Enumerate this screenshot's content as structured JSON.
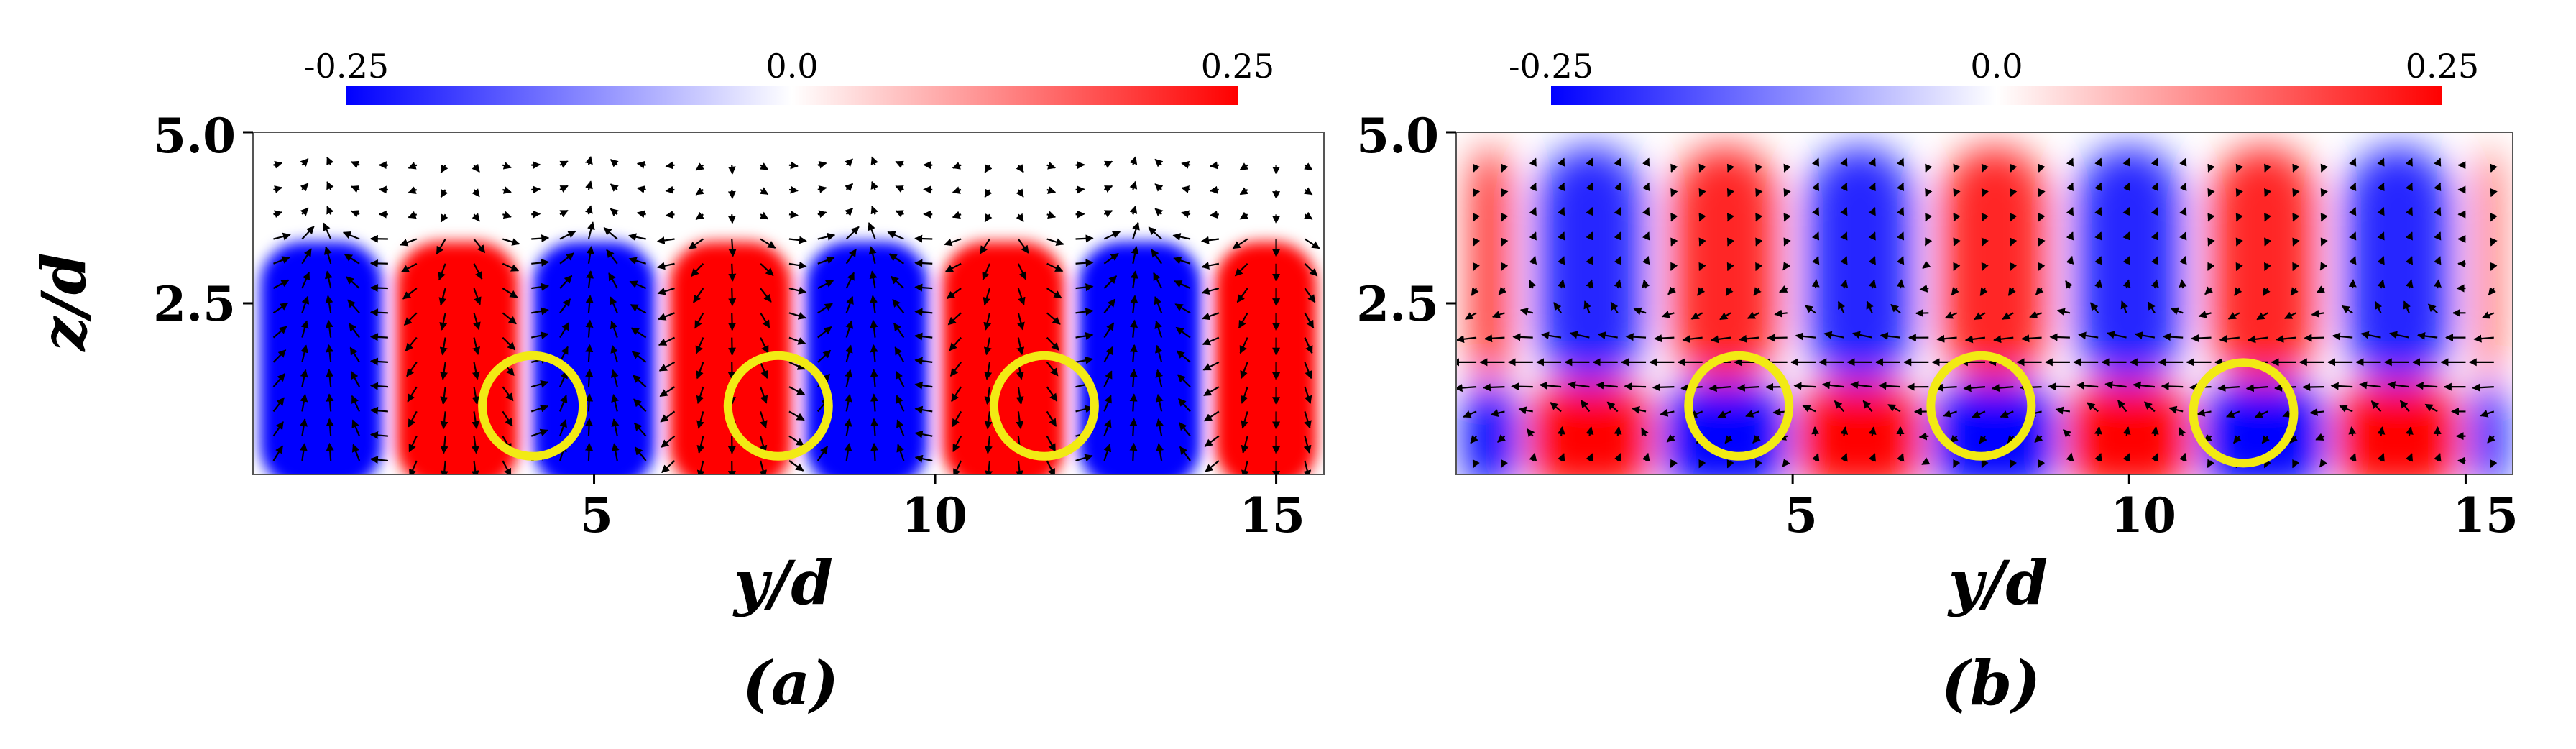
{
  "chart_data": [
    {
      "type": "heatmap",
      "panel_label": "(a)",
      "xlabel": "y/d",
      "ylabel": "z/d",
      "xlim": [
        0,
        15.7
      ],
      "ylim": [
        0,
        5.0
      ],
      "x_ticks": [
        5,
        10,
        15
      ],
      "y_ticks": [
        2.5,
        5.0
      ],
      "x_tick_labels": [
        "5",
        "10",
        "15"
      ],
      "y_tick_labels": [
        "2.5",
        "5.0"
      ],
      "colorbar": {
        "min": -0.25,
        "max": 0.25,
        "tick_labels": [
          "-0.25",
          "0.0",
          "0.25"
        ],
        "colormap": [
          "#0000ff",
          "#ffffff",
          "#ff0000"
        ]
      },
      "cells": [
        {
          "y_range": [
            0,
            2.0
          ],
          "z_range": [
            0,
            3.4
          ],
          "sign": "negative"
        },
        {
          "y_range": [
            2.0,
            4.0
          ],
          "z_range": [
            0,
            3.4
          ],
          "sign": "positive"
        },
        {
          "y_range": [
            4.0,
            6.0
          ],
          "z_range": [
            0,
            3.4
          ],
          "sign": "negative"
        },
        {
          "y_range": [
            6.0,
            8.0
          ],
          "z_range": [
            0,
            3.4
          ],
          "sign": "positive"
        },
        {
          "y_range": [
            8.0,
            10.0
          ],
          "z_range": [
            0,
            3.4
          ],
          "sign": "negative"
        },
        {
          "y_range": [
            10.0,
            12.0
          ],
          "z_range": [
            0,
            3.4
          ],
          "sign": "positive"
        },
        {
          "y_range": [
            12.0,
            14.0
          ],
          "z_range": [
            0,
            3.4
          ],
          "sign": "negative"
        },
        {
          "y_range": [
            14.0,
            15.7
          ],
          "z_range": [
            0,
            3.4
          ],
          "sign": "positive"
        }
      ],
      "highlight_circles": [
        {
          "y": 4.1,
          "z": 1.0
        },
        {
          "y": 7.7,
          "z": 1.0
        },
        {
          "y": 11.6,
          "z": 1.0
        }
      ],
      "highlight_color": "#f2ea14"
    },
    {
      "type": "heatmap",
      "panel_label": "(b)",
      "xlabel": "y/d",
      "ylabel": "",
      "xlim": [
        0,
        15.7
      ],
      "ylim": [
        0,
        5.0
      ],
      "x_ticks": [
        5,
        10,
        15
      ],
      "y_ticks": [
        2.5,
        5.0
      ],
      "x_tick_labels": [
        "5",
        "10",
        "15"
      ],
      "y_tick_labels": [
        "2.5",
        "5.0"
      ],
      "colorbar": {
        "min": -0.25,
        "max": 0.25,
        "tick_labels": [
          "-0.25",
          "0.0",
          "0.25"
        ],
        "colormap": [
          "#0000ff",
          "#ffffff",
          "#ff0000"
        ]
      },
      "upper_cells": [
        {
          "y_range": [
            0,
            1.0
          ],
          "sign": "positive"
        },
        {
          "y_range": [
            1.0,
            3.0
          ],
          "sign": "negative"
        },
        {
          "y_range": [
            3.0,
            5.0
          ],
          "sign": "positive"
        },
        {
          "y_range": [
            5.0,
            7.0
          ],
          "sign": "negative"
        },
        {
          "y_range": [
            7.0,
            9.0
          ],
          "sign": "positive"
        },
        {
          "y_range": [
            9.0,
            11.0
          ],
          "sign": "negative"
        },
        {
          "y_range": [
            11.0,
            13.0
          ],
          "sign": "positive"
        },
        {
          "y_range": [
            13.0,
            15.0
          ],
          "sign": "negative"
        },
        {
          "y_range": [
            15.0,
            15.7
          ],
          "sign": "positive"
        }
      ],
      "lower_cells": [
        {
          "y_range": [
            0,
            1.0
          ],
          "sign": "negative"
        },
        {
          "y_range": [
            1.0,
            3.0
          ],
          "sign": "positive"
        },
        {
          "y_range": [
            3.0,
            5.0
          ],
          "sign": "negative"
        },
        {
          "y_range": [
            5.0,
            7.0
          ],
          "sign": "positive"
        },
        {
          "y_range": [
            7.0,
            9.0
          ],
          "sign": "negative"
        },
        {
          "y_range": [
            9.0,
            11.0
          ],
          "sign": "positive"
        },
        {
          "y_range": [
            11.0,
            13.0
          ],
          "sign": "negative"
        },
        {
          "y_range": [
            13.0,
            15.0
          ],
          "sign": "positive"
        },
        {
          "y_range": [
            15.0,
            15.7
          ],
          "sign": "negative"
        }
      ],
      "lower_z_range": [
        0,
        1.3
      ],
      "upper_z_range": [
        1.3,
        4.8
      ],
      "highlight_circles": [
        {
          "y": 4.2,
          "z": 1.0
        },
        {
          "y": 7.8,
          "z": 1.0
        },
        {
          "y": 11.7,
          "z": 0.9
        }
      ],
      "highlight_color": "#f2ea14"
    }
  ]
}
